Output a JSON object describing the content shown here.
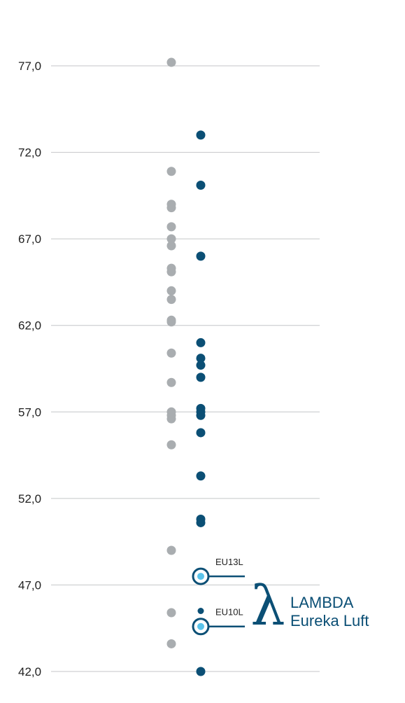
{
  "chart_data": {
    "type": "scatter",
    "title": "",
    "xlabel": "",
    "ylabel": "",
    "ylim": [
      42,
      77
    ],
    "y_ticks": [
      "77,0",
      "72,0",
      "67,0",
      "62,0",
      "57,0",
      "52,0",
      "47,0",
      "42,0"
    ],
    "grid": true,
    "series": [
      {
        "color": "#a9adb0",
        "values": [
          77.2,
          70.9,
          69.0,
          68.8,
          67.7,
          67.0,
          66.6,
          65.3,
          65.1,
          64.0,
          63.5,
          62.3,
          62.2,
          60.4,
          58.7,
          57.0,
          56.8,
          56.6,
          55.1,
          49.0,
          45.4,
          43.6
        ]
      },
      {
        "color": "#0b4f75",
        "values": [
          73.0,
          70.1,
          66.0,
          61.0,
          60.1,
          59.7,
          59.0,
          57.2,
          57.0,
          56.8,
          55.8,
          53.3,
          50.8,
          50.6
        ]
      },
      {
        "color": "#0b4f75",
        "values": [
          42.0
        ]
      }
    ],
    "annotations": [
      {
        "label": "EU13L",
        "value": 47.5,
        "color": "#5bc3ea"
      },
      {
        "label": "EU10L",
        "value": 44.6,
        "color": "#5bc3ea",
        "marker_above": 45.5
      }
    ]
  },
  "logo": {
    "symbol": "λ",
    "line1": "LAMBDA",
    "line2": "Eureka Luft",
    "color": "#0b4f75"
  }
}
